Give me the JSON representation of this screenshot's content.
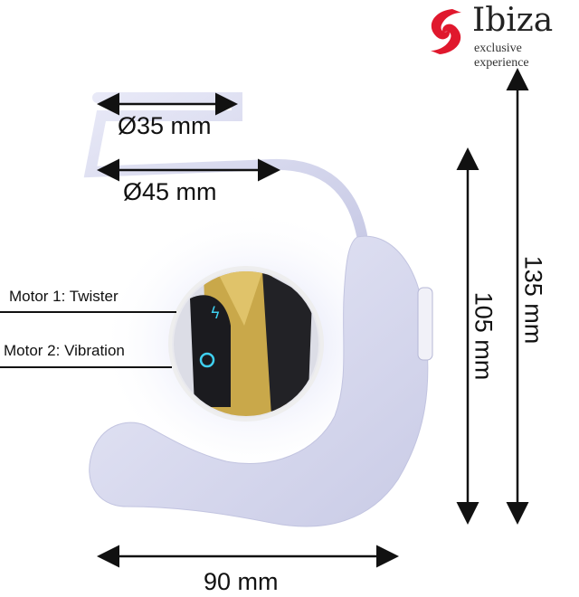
{
  "brand": {
    "name": "Ibiza",
    "tagline": "exclusive experience",
    "color": "#e0182d"
  },
  "dimensions": {
    "ring_inner": "Ø35 mm",
    "ring_outer": "Ø45 mm",
    "width": "90 mm",
    "insertable_length": "105 mm",
    "total_length": "135 mm"
  },
  "motors": {
    "motor1": "Motor 1: Twister",
    "motor2": "Motor 2: Vibration"
  },
  "colors": {
    "device": "#d9dbf0",
    "gold": "#c9a84a",
    "button_glow": "#3fd0f0"
  }
}
